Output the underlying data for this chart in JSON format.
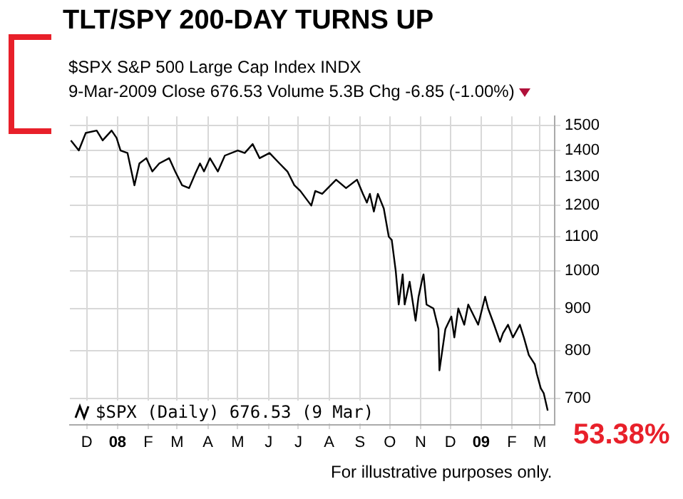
{
  "chart_data": {
    "type": "line",
    "title": "TLT/SPY 200-DAY TURNS UP",
    "subtitle": "$SPX S&P 500 Large Cap Index INDX",
    "annotations": [
      "9-Mar-2009 Close 676.53 Volume 5.3B Chg -6.85 (-1.00%)",
      "53.38%",
      "For illustrative purposes only."
    ],
    "x": [
      "2007-11-15",
      "2007-11-23",
      "2007-11-30",
      "2007-12-11",
      "2007-12-17",
      "2007-12-26",
      "2007-12-31",
      "2008-01-04",
      "2008-01-11",
      "2008-01-18",
      "2008-01-23",
      "2008-01-30",
      "2008-02-05",
      "2008-02-12",
      "2008-02-22",
      "2008-02-28",
      "2008-03-06",
      "2008-03-13",
      "2008-03-19",
      "2008-03-24",
      "2008-03-28",
      "2008-04-03",
      "2008-04-11",
      "2008-04-18",
      "2008-05-01",
      "2008-05-08",
      "2008-05-16",
      "2008-05-23",
      "2008-06-02",
      "2008-06-12",
      "2008-06-20",
      "2008-06-27",
      "2008-07-03",
      "2008-07-14",
      "2008-07-18",
      "2008-07-25",
      "2008-08-08",
      "2008-08-18",
      "2008-08-29",
      "2008-09-04",
      "2008-09-08",
      "2008-09-11",
      "2008-09-15",
      "2008-09-19",
      "2008-09-25",
      "2008-09-30",
      "2008-10-03",
      "2008-10-07",
      "2008-10-10",
      "2008-10-14",
      "2008-10-16",
      "2008-10-21",
      "2008-10-27",
      "2008-10-30",
      "2008-11-03",
      "2008-11-04",
      "2008-11-07",
      "2008-11-14",
      "2008-11-19",
      "2008-11-20",
      "2008-11-26",
      "2008-12-02",
      "2008-12-05",
      "2008-12-09",
      "2008-12-15",
      "2008-12-19",
      "2008-12-29",
      "2009-01-05",
      "2009-01-08",
      "2009-01-14",
      "2009-01-20",
      "2009-01-23",
      "2009-01-28",
      "2009-02-02",
      "2009-02-09",
      "2009-02-13",
      "2009-02-18",
      "2009-02-24",
      "2009-02-26",
      "2009-03-02",
      "2009-03-05",
      "2009-03-09"
    ],
    "series": [
      {
        "name": "$SPX (Daily) 676.53 (9 Mar)",
        "color": "#000000",
        "values": [
          1440,
          1400,
          1470,
          1480,
          1440,
          1480,
          1450,
          1400,
          1390,
          1270,
          1350,
          1370,
          1320,
          1350,
          1370,
          1320,
          1270,
          1260,
          1310,
          1350,
          1320,
          1370,
          1320,
          1380,
          1400,
          1390,
          1425,
          1370,
          1390,
          1350,
          1320,
          1270,
          1250,
          1200,
          1250,
          1240,
          1290,
          1260,
          1290,
          1240,
          1210,
          1240,
          1180,
          1240,
          1190,
          1100,
          1090,
          1000,
          910,
          990,
          910,
          970,
          870,
          930,
          980,
          990,
          910,
          900,
          850,
          757,
          850,
          880,
          830,
          900,
          860,
          910,
          860,
          930,
          900,
          860,
          820,
          840,
          860,
          830,
          860,
          830,
          790,
          770,
          750,
          720,
          710,
          676.53
        ]
      }
    ],
    "xlim": [
      "2007-11-14",
      "2009-03-16"
    ],
    "xticks": [
      {
        "value": "2007-12-01",
        "label": "D"
      },
      {
        "value": "2008-01-01",
        "label": "08"
      },
      {
        "value": "2008-02-01",
        "label": "F"
      },
      {
        "value": "2008-03-01",
        "label": "M"
      },
      {
        "value": "2008-04-01",
        "label": "A"
      },
      {
        "value": "2008-05-01",
        "label": "M"
      },
      {
        "value": "2008-06-01",
        "label": "J"
      },
      {
        "value": "2008-07-01",
        "label": "J"
      },
      {
        "value": "2008-08-01",
        "label": "A"
      },
      {
        "value": "2008-09-01",
        "label": "S"
      },
      {
        "value": "2008-10-01",
        "label": "O"
      },
      {
        "value": "2008-11-01",
        "label": "N"
      },
      {
        "value": "2008-12-01",
        "label": "D"
      },
      {
        "value": "2009-01-01",
        "label": "09"
      },
      {
        "value": "2009-02-01",
        "label": "F"
      },
      {
        "value": "2009-03-01",
        "label": "M"
      }
    ],
    "ylim": [
      650,
      1540
    ],
    "yticks": [
      700,
      800,
      900,
      1000,
      1100,
      1200,
      1300,
      1400,
      1500
    ],
    "log": "y",
    "grid": true,
    "legend": "bottom left"
  }
}
